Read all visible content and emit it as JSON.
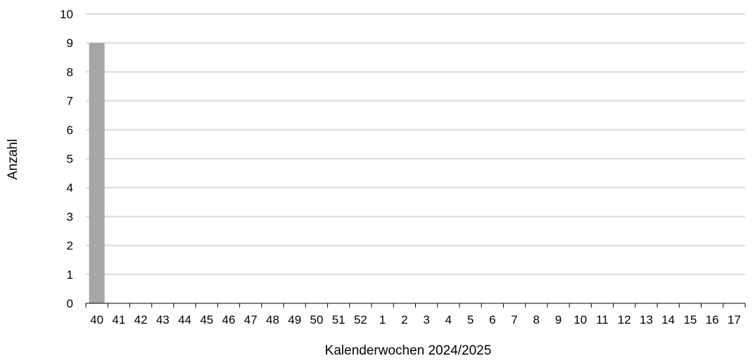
{
  "chart_data": {
    "type": "bar",
    "title": "",
    "xlabel": "Kalenderwochen 2024/2025",
    "ylabel": "Anzahl",
    "categories": [
      "40",
      "41",
      "42",
      "43",
      "44",
      "45",
      "46",
      "47",
      "48",
      "49",
      "50",
      "51",
      "52",
      "1",
      "2",
      "3",
      "4",
      "5",
      "6",
      "7",
      "8",
      "9",
      "10",
      "11",
      "12",
      "13",
      "14",
      "15",
      "16",
      "17"
    ],
    "values": [
      9,
      0,
      0,
      0,
      0,
      0,
      0,
      0,
      0,
      0,
      0,
      0,
      0,
      0,
      0,
      0,
      0,
      0,
      0,
      0,
      0,
      0,
      0,
      0,
      0,
      0,
      0,
      0,
      0,
      0
    ],
    "ylim": [
      0,
      10
    ],
    "yticks": [
      0,
      1,
      2,
      3,
      4,
      5,
      6,
      7,
      8,
      9,
      10
    ],
    "grid": true,
    "legend": "none",
    "colors": {
      "bar": "#a6a6a6",
      "grid": "#d9d9d9",
      "axis": "#000000"
    }
  }
}
